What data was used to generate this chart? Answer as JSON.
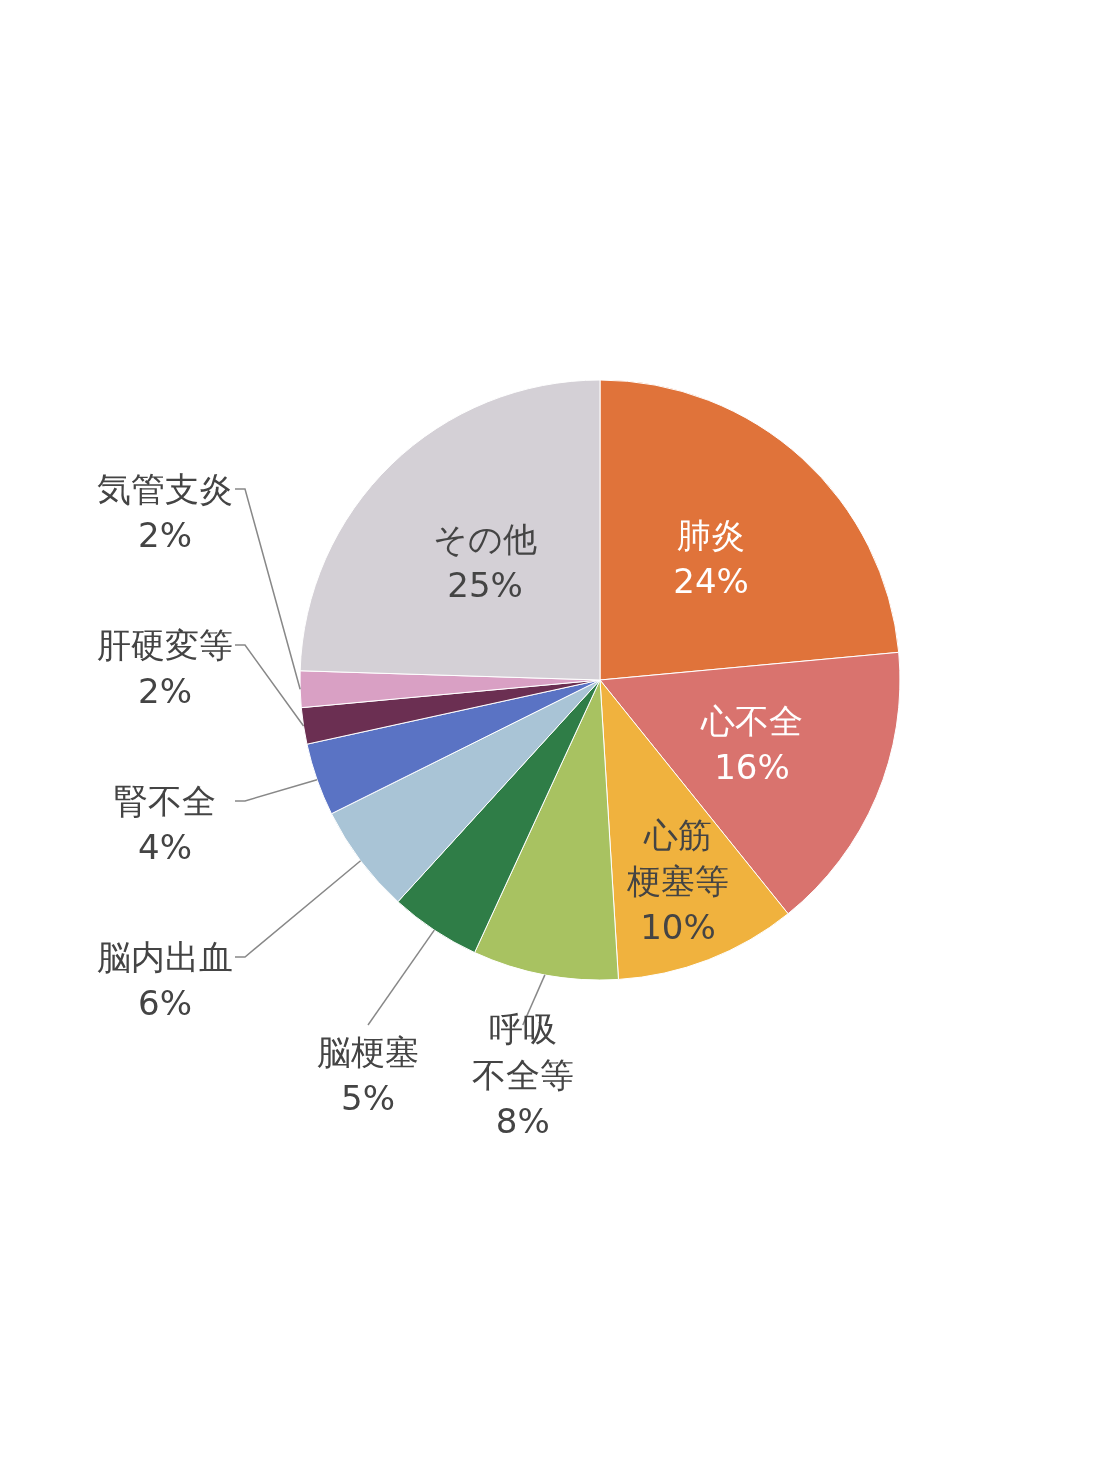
{
  "chart_data": {
    "type": "pie",
    "categories": [
      "肺炎",
      "心不全",
      "心筋梗塞等",
      "呼吸不全等",
      "脳梗塞",
      "脳内出血",
      "腎不全",
      "肝硬変等",
      "気管支炎",
      "その他"
    ],
    "values": [
      24,
      16,
      10,
      8,
      5,
      6,
      4,
      2,
      2,
      25
    ],
    "value_labels": [
      "24%",
      "16%",
      "10%",
      "8%",
      "5%",
      "6%",
      "4%",
      "2%",
      "2%",
      "25%"
    ],
    "colors": [
      "#e0733a",
      "#d9736e",
      "#f0b23e",
      "#a8c261",
      "#2f7d47",
      "#a9c4d6",
      "#5a73c4",
      "#6b2f52",
      "#d9a0c4",
      "#d4d0d6"
    ]
  }
}
